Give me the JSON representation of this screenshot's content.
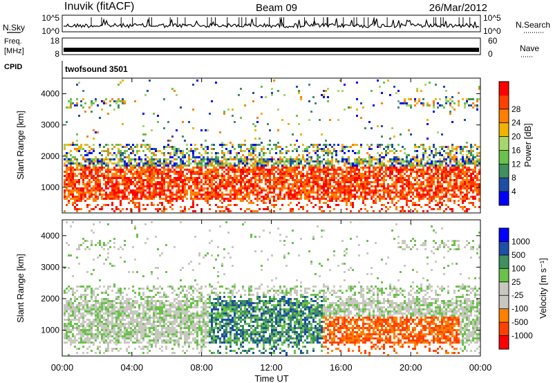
{
  "header": {
    "station": "Inuvik (fitACF)",
    "beam": "Beam 09",
    "date": "26/Mar/2012"
  },
  "panels": {
    "nsky_label": "N.Sky",
    "nsearch_label": "N.Search",
    "nsky_ticks": [
      "10^5",
      "10^0"
    ],
    "freq_label": "Freq.",
    "freq_unit": "[MHz]",
    "freq_ticks": [
      "18",
      "8"
    ],
    "nave_label": "Nave",
    "nave_ticks": [
      "60",
      "0"
    ],
    "cpid_label": "CPID",
    "cpid_value": "twofsound 3501"
  },
  "colors": {
    "power": [
      "#0000ff",
      "#1d4fa6",
      "#3f8f5f",
      "#6ac24a",
      "#a8d66b",
      "#f0b400",
      "#ff8000",
      "#ff4000",
      "#ff0000"
    ],
    "velocity": [
      "#ff0000",
      "#ff4000",
      "#ff8000",
      "#c8c8c0",
      "#c8c8c0",
      "#6ac24a",
      "#3f8f5f",
      "#1d4fa6",
      "#0000ff"
    ]
  },
  "chart_data": [
    {
      "type": "heatmap",
      "parameter": "power",
      "ylabel": "Slant Range [km]",
      "yticks": [
        1000,
        2000,
        3000,
        4000
      ],
      "ylim": [
        180,
        4500
      ],
      "colorbar": {
        "label": "Power [dB]",
        "ticks": [
          "4",
          "8",
          "12",
          "16",
          "20",
          "24",
          "28"
        ]
      }
    },
    {
      "type": "heatmap",
      "parameter": "velocity",
      "ylabel": "Slant Range [km]",
      "yticks": [
        1000,
        2000,
        3000,
        4000
      ],
      "ylim": [
        180,
        4500
      ],
      "colorbar": {
        "label": "Velocity [m s⁻¹]",
        "ticks": [
          "-1000",
          "-500",
          "-100",
          "-25",
          "25",
          "100",
          "500",
          "1000"
        ]
      }
    }
  ],
  "time_axis": {
    "label": "Time UT",
    "ticks": [
      "00:00",
      "04:00",
      "08:00",
      "12:00",
      "16:00",
      "20:00",
      "00:00"
    ]
  }
}
